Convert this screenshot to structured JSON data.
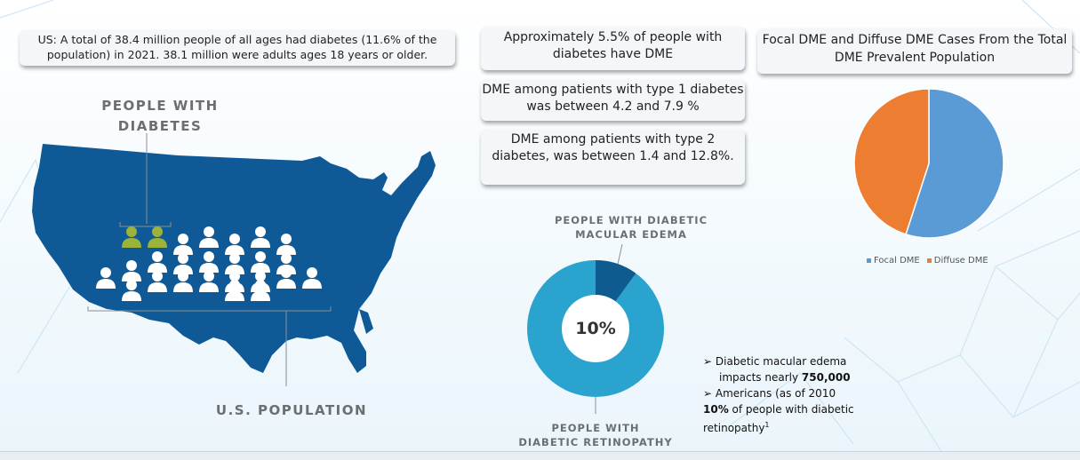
{
  "callouts": {
    "us_total": "US: A total of 38.4 million people of all ages had diabetes (11.6% of the population) in 2021. 38.1 million were adults ages 18 years or older.",
    "dme_share": "Approximately 5.5% of people with diabetes have DME",
    "type1": "DME among patients with type 1 diabetes was between 4.2 and 7.9 %",
    "type2": "DME among patients with type 2 diabetes, was between 1.4 and 12.8%."
  },
  "infographic": {
    "people_with_diabetes_line1": "PEOPLE WITH",
    "people_with_diabetes_line2": "DIABETES",
    "us_population": "U.S. POPULATION",
    "highlighted_people": 2,
    "total_people": 25,
    "colors": {
      "map": "#0f5a96",
      "person": "#ffffff",
      "highlight": "#9bb33a"
    }
  },
  "donut": {
    "label_top_line1": "PEOPLE WITH DIABETIC",
    "label_top_line2": "MACULAR EDEMA",
    "center_text": "10%",
    "label_bottom_line1": "PEOPLE WITH",
    "label_bottom_line2": "DIABETIC RETINOPATHY",
    "dme_fraction": 0.1,
    "colors": {
      "dme": "#0f5a8e",
      "dr": "#2aa3cf"
    }
  },
  "chart_data": {
    "type": "pie",
    "title": "Focal DME and Diffuse DME Cases From the Total DME Prevalent Population",
    "categories": [
      "Focal DME",
      "Diffuse DME"
    ],
    "values": [
      55,
      45
    ],
    "colors": [
      "#5b9bd5",
      "#ed7d31"
    ],
    "legend": "bottom"
  },
  "bullets": {
    "b1_prefix": "➢",
    "b1_line1": "Diabetic macular edema",
    "b1_line2_text": "impacts nearly ",
    "b1_line2_bold": "750,000",
    "b2_prefix": "➢",
    "b2_text": "Americans (as of 2010",
    "b3_bold": "10%",
    "b3_text": "  of people with diabetic",
    "b4_text": "retinopathy",
    "b4_sup": "1"
  }
}
